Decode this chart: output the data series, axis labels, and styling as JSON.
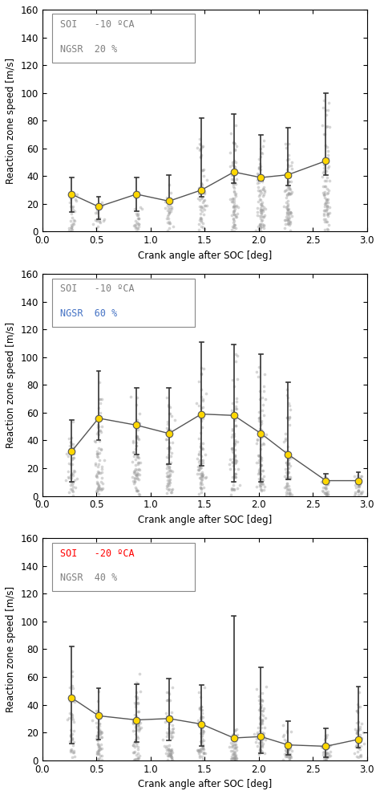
{
  "panels": [
    {
      "soi_text": "SOI   -10 ºCA",
      "ngsr_text": "NGSR  20 %",
      "soi_color": "#808080",
      "ngsr_color": "#808080",
      "x": [
        0.27,
        0.52,
        0.87,
        1.17,
        1.47,
        1.77,
        2.02,
        2.27,
        2.62
      ],
      "mean": [
        27,
        18,
        27,
        22,
        30,
        43,
        39,
        41,
        51
      ],
      "err_low": [
        13,
        9,
        12,
        1,
        5,
        8,
        2,
        8,
        10
      ],
      "err_high": [
        12,
        7,
        12,
        19,
        52,
        42,
        31,
        34,
        49
      ],
      "scatter_density": [
        30,
        20,
        25,
        30,
        60,
        80,
        80,
        80,
        80
      ],
      "scatter_max": [
        40,
        27,
        40,
        42,
        85,
        90,
        80,
        80,
        108
      ]
    },
    {
      "soi_text": "SOI   -10 ºCA",
      "ngsr_text": "NGSR  60 %",
      "soi_color": "#808080",
      "ngsr_color": "#4472C4",
      "x": [
        0.27,
        0.52,
        0.87,
        1.17,
        1.47,
        1.77,
        2.02,
        2.27,
        2.62,
        2.92
      ],
      "mean": [
        32,
        56,
        51,
        45,
        59,
        58,
        45,
        30,
        11,
        11
      ],
      "err_low": [
        22,
        16,
        21,
        22,
        37,
        48,
        35,
        18,
        2,
        1
      ],
      "err_high": [
        23,
        34,
        27,
        33,
        52,
        51,
        57,
        52,
        5,
        6
      ],
      "scatter_density": [
        50,
        70,
        70,
        70,
        80,
        80,
        80,
        70,
        30,
        30
      ],
      "scatter_max": [
        58,
        95,
        82,
        82,
        115,
        112,
        105,
        85,
        20,
        20
      ]
    },
    {
      "soi_text": "SOI   -20 ºCA",
      "ngsr_text": "NGSR  40 %",
      "soi_color": "#FF0000",
      "ngsr_color": "#808080",
      "x": [
        0.27,
        0.52,
        0.87,
        1.17,
        1.47,
        1.77,
        2.02,
        2.27,
        2.62,
        2.92
      ],
      "mean": [
        45,
        32,
        29,
        30,
        26,
        16,
        17,
        11,
        10,
        15
      ],
      "err_low": [
        33,
        17,
        16,
        16,
        16,
        1,
        12,
        7,
        8,
        6
      ],
      "err_high": [
        37,
        20,
        26,
        29,
        28,
        88,
        50,
        17,
        13,
        38
      ],
      "scatter_density": [
        40,
        60,
        70,
        70,
        70,
        50,
        70,
        40,
        40,
        40
      ],
      "scatter_max": [
        85,
        55,
        78,
        62,
        58,
        25,
        70,
        30,
        25,
        58
      ]
    }
  ],
  "ylabel": "Reaction zone speed [m/s]",
  "xlabel": "Crank angle after SOC [deg]",
  "ylim": [
    0,
    160
  ],
  "xlim": [
    0.0,
    3.0
  ],
  "yticks": [
    0,
    20,
    40,
    60,
    80,
    100,
    120,
    140,
    160
  ],
  "xticks": [
    0.0,
    0.5,
    1.0,
    1.5,
    2.0,
    2.5,
    3.0
  ],
  "mean_color": "#FFD700",
  "mean_edge_color": "#555555",
  "line_color": "#555555",
  "error_bar_color": "#333333",
  "scatter_color": "#999999",
  "background_color": "#FFFFFF"
}
